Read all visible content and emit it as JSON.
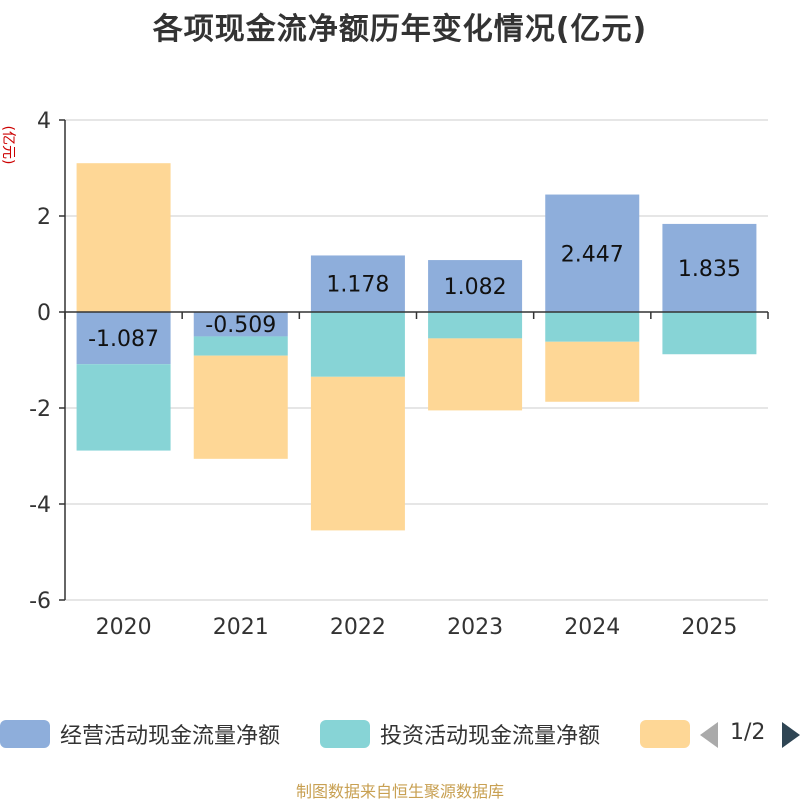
{
  "chart_data": {
    "type": "bar",
    "stacked": true,
    "title": "各项现金流净额历年变化情况(亿元)",
    "ylabel": "(亿元)",
    "xlabel": "",
    "categories": [
      "2020",
      "2021",
      "2022",
      "2023",
      "2024",
      "2025"
    ],
    "ylim": [
      -6,
      4
    ],
    "yticks": [
      -6,
      -4,
      -2,
      0,
      2,
      4
    ],
    "grid": true,
    "series": [
      {
        "name": "经营活动现金流量净额",
        "color": "#8eaedb",
        "values": [
          -1.087,
          -0.509,
          1.178,
          1.082,
          2.447,
          1.835
        ],
        "labels": [
          "-1.087",
          "-0.509",
          "1.178",
          "1.082",
          "2.447",
          "1.835"
        ]
      },
      {
        "name": "投资活动现金流量净额",
        "color": "#87d4d6",
        "values": [
          -1.8,
          -0.4,
          -1.35,
          -0.55,
          -0.62,
          -0.88
        ]
      },
      {
        "name": "",
        "color": "#fed796",
        "values": [
          3.1,
          -2.15,
          -3.2,
          -1.5,
          -1.25,
          0
        ]
      }
    ]
  },
  "legend": {
    "page": "1/2"
  },
  "source": "制图数据来自恒生聚源数据库",
  "colors": {
    "axis": "#333333",
    "grid": "#cccccc",
    "ylabel": "#cc0000",
    "source": "#c8a052"
  }
}
